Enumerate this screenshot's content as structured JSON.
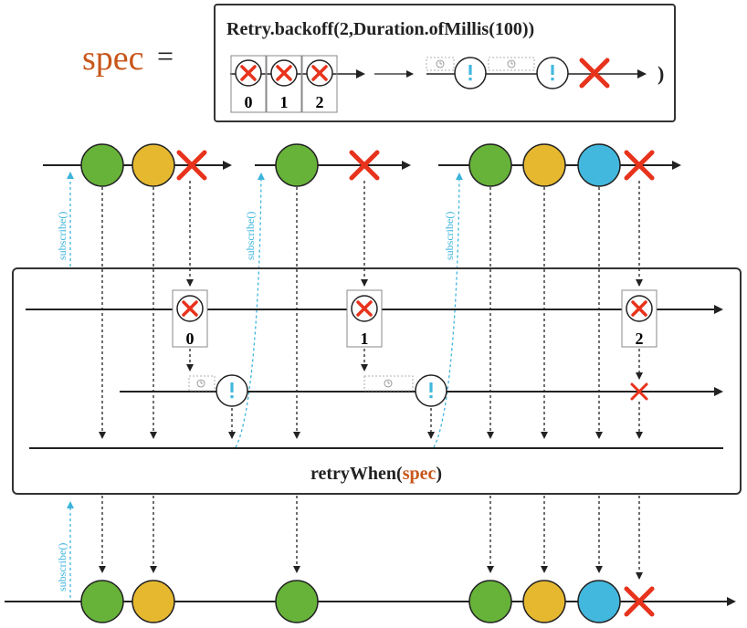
{
  "spec": {
    "label": "spec",
    "equals": "=",
    "formula": "Retry.backoff(2,Duration.ofMillis(100))",
    "closing_paren": ")",
    "retry_indices": [
      "0",
      "1",
      "2"
    ]
  },
  "operator": {
    "name": "retryWhen(",
    "arg": "spec",
    "close": ")"
  },
  "annotations": {
    "subscribe": "subscribe()"
  },
  "companion_indices": [
    "0",
    "1",
    "2"
  ],
  "colors": {
    "green": "#67b33a",
    "yellow": "#e6b830",
    "blue": "#43b8de",
    "error_red": "#e8331c",
    "spec_orange": "#c8561a",
    "dashed_blue": "#3cb4dc",
    "line": "#222222"
  }
}
